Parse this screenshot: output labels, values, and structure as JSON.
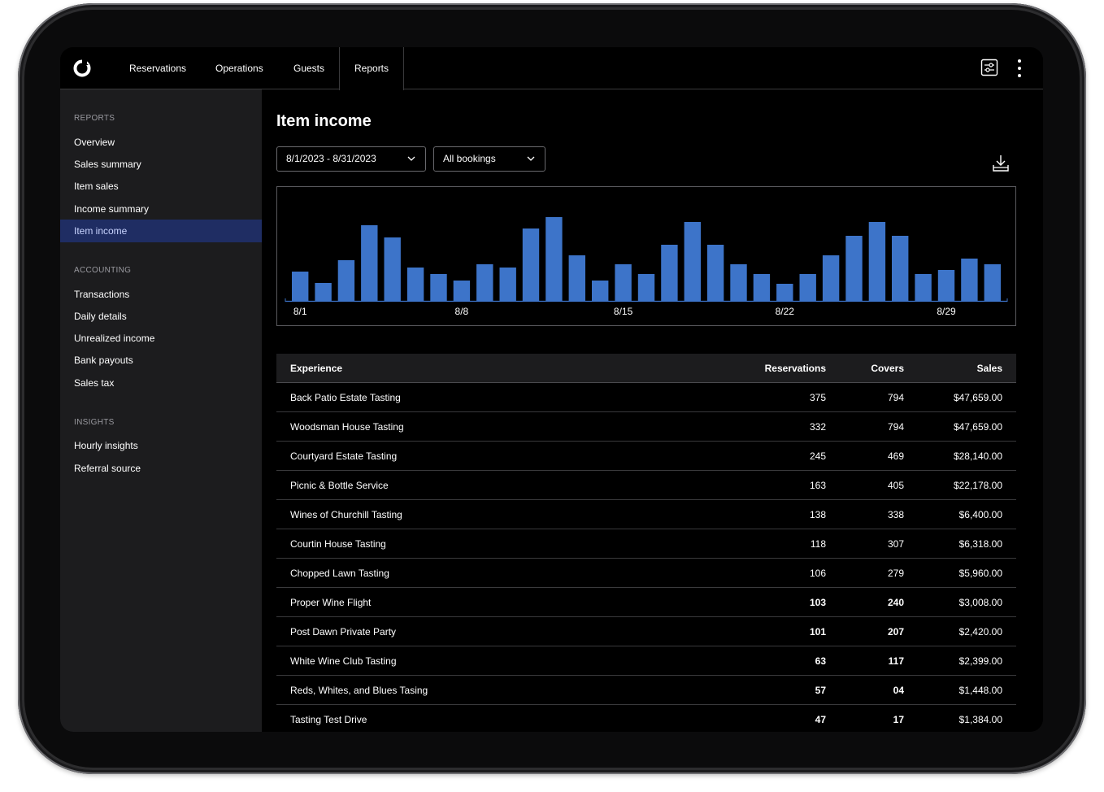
{
  "nav": {
    "items": [
      "Reservations",
      "Operations",
      "Guests",
      "Reports"
    ],
    "active": "Reports"
  },
  "sidebar": {
    "sections": [
      {
        "heading": "REPORTS",
        "items": [
          "Overview",
          "Sales summary",
          "Item sales",
          "Income summary",
          "Item income"
        ]
      },
      {
        "heading": "ACCOUNTING",
        "items": [
          "Transactions",
          "Daily details",
          "Unrealized income",
          "Bank payouts",
          "Sales tax"
        ]
      },
      {
        "heading": "INSIGHTS",
        "items": [
          "Hourly insights",
          "Referral source"
        ]
      }
    ],
    "active": "Item income"
  },
  "main": {
    "title": "Item income",
    "date_range": "8/1/2023 - 8/31/2023",
    "booking_filter": "All bookings"
  },
  "colors": {
    "bar": "#3d74c9",
    "active_sidebar_bg": "#1f2d63"
  },
  "chart_data": {
    "type": "bar",
    "categories": [
      "8/1",
      "8/2",
      "8/3",
      "8/4",
      "8/5",
      "8/6",
      "8/7",
      "8/8",
      "8/9",
      "8/10",
      "8/11",
      "8/12",
      "8/13",
      "8/14",
      "8/15",
      "8/16",
      "8/17",
      "8/18",
      "8/19",
      "8/20",
      "8/21",
      "8/22",
      "8/23",
      "8/24",
      "8/25",
      "8/26",
      "8/27",
      "8/28",
      "8/29",
      "8/30",
      "8/31"
    ],
    "tick_labels": [
      "8/1",
      "8/8",
      "8/15",
      "8/22",
      "8/29"
    ],
    "values": [
      36,
      22,
      50,
      93,
      78,
      41,
      33,
      25,
      45,
      41,
      89,
      103,
      56,
      25,
      45,
      33,
      69,
      97,
      69,
      45,
      33,
      21,
      33,
      56,
      80,
      97,
      80,
      33,
      38,
      52,
      45
    ],
    "ylim": [
      0,
      110
    ],
    "grid": false
  },
  "table": {
    "headers": [
      "Experience",
      "Reservations",
      "Covers",
      "Sales"
    ],
    "rows": [
      {
        "experience": "Back Patio Estate Tasting",
        "reservations": "375",
        "covers": "794",
        "sales": "$47,659.00"
      },
      {
        "experience": "Woodsman House Tasting",
        "reservations": "332",
        "covers": "794",
        "sales": "$47,659.00"
      },
      {
        "experience": "Courtyard Estate Tasting",
        "reservations": "245",
        "covers": "469",
        "sales": "$28,140.00"
      },
      {
        "experience": "Picnic & Bottle Service",
        "reservations": "163",
        "covers": "405",
        "sales": "$22,178.00"
      },
      {
        "experience": "Wines of Churchill Tasting",
        "reservations": "138",
        "covers": "338",
        "sales": "$6,400.00"
      },
      {
        "experience": "Courtin House Tasting",
        "reservations": "118",
        "covers": "307",
        "sales": "$6,318.00"
      },
      {
        "experience": "Chopped Lawn Tasting",
        "reservations": "106",
        "covers": "279",
        "sales": "$5,960.00"
      },
      {
        "experience": "Proper Wine Flight",
        "reservations": "103",
        "covers": "240",
        "sales": "$3,008.00"
      },
      {
        "experience": "Post Dawn Private Party",
        "reservations": "101",
        "covers": "207",
        "sales": "$2,420.00"
      },
      {
        "experience": "White Wine Club Tasting",
        "reservations": "63",
        "covers": "117",
        "sales": "$2,399.00"
      },
      {
        "experience": "Reds, Whites, and Blues Tasing",
        "reservations": "57",
        "covers": "04",
        "sales": "$1,448.00"
      },
      {
        "experience": "Tasting Test Drive",
        "reservations": "47",
        "covers": "17",
        "sales": "$1,384.00"
      }
    ]
  }
}
